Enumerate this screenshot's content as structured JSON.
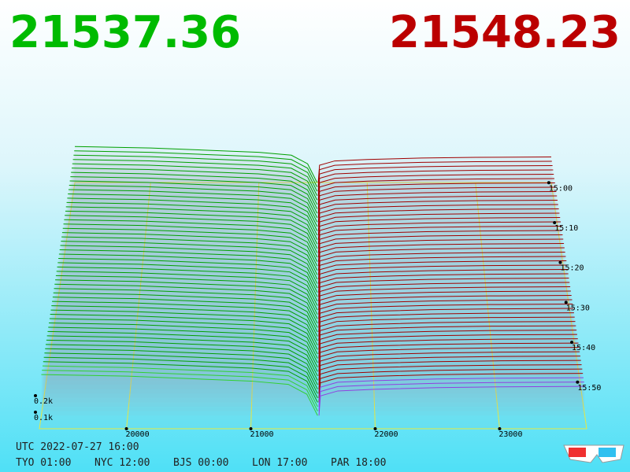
{
  "header": {
    "bid_price": "21537.36",
    "ask_price": "21548.23"
  },
  "chart_data": {
    "type": "depth3d",
    "xlim": [
      19300,
      23700
    ],
    "xticks": [
      20000,
      21000,
      22000,
      23000
    ],
    "depth_ticks": [
      {
        "value": 0.1,
        "label": "0.1k"
      },
      {
        "value": 0.2,
        "label": "0.2k"
      }
    ],
    "time_ticks": [
      "15:00",
      "15:10",
      "15:20",
      "15:30",
      "15:40",
      "15:50"
    ],
    "series": [
      {
        "color": "#00a000",
        "x": [
          19300,
          20000,
          20500,
          21000,
          21300,
          21450,
          21537
        ],
        "values": [
          0.25,
          0.24,
          0.225,
          0.21,
          0.19,
          0.13,
          0
        ]
      },
      {
        "color": "#a00000",
        "x": [
          21548,
          21560,
          21700,
          22000,
          22500,
          23000,
          23700
        ],
        "values": [
          0,
          0.12,
          0.15,
          0.16,
          0.17,
          0.175,
          0.178
        ]
      }
    ],
    "grid_color": "#e8e840"
  },
  "footer": {
    "utc": "UTC 2022-07-27 16:00",
    "zones": [
      "TYO 01:00",
      "NYC 12:00",
      "BJS 00:00",
      "LON 17:00",
      "PAR 18:00"
    ]
  }
}
